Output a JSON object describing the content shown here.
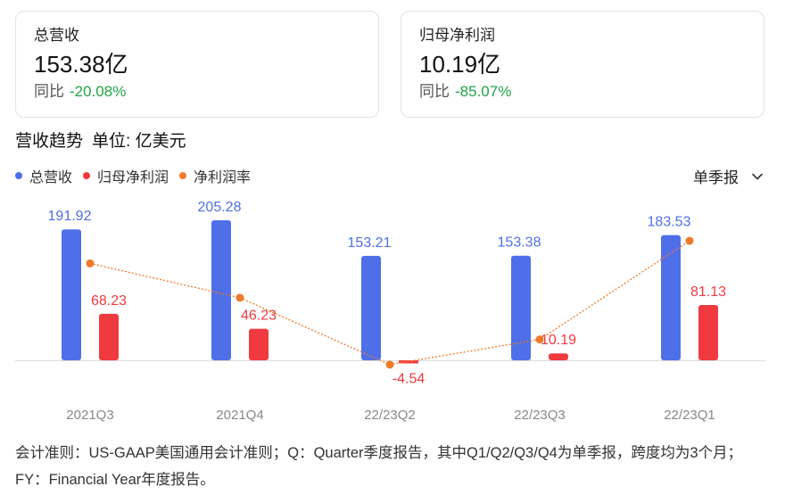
{
  "cards": [
    {
      "label": "总营收",
      "value": "153.38亿",
      "yoy_label": "同比",
      "yoy_value": "-20.08%"
    },
    {
      "label": "归母净利润",
      "value": "10.19亿",
      "yoy_label": "同比",
      "yoy_value": "-85.07%"
    }
  ],
  "trend": {
    "title": "营收趋势",
    "unit": "单位: 亿美元"
  },
  "legend": [
    {
      "label": "总营收",
      "color": "#4f6fe8"
    },
    {
      "label": "归母净利润",
      "color": "#f03a3f"
    },
    {
      "label": "净利润率",
      "color": "#f07a2a"
    }
  ],
  "period_select": {
    "label": "单季报",
    "icon": "chevron-down-icon"
  },
  "chart_data": {
    "type": "bar",
    "categories": [
      "2021Q3",
      "2021Q4",
      "22/23Q2",
      "22/23Q3",
      "22/23Q1"
    ],
    "series": [
      {
        "name": "总营收",
        "type": "bar",
        "color": "#4f6fe8",
        "values": [
          191.92,
          205.28,
          153.21,
          153.38,
          183.53
        ]
      },
      {
        "name": "归母净利润",
        "type": "bar",
        "color": "#f03a3f",
        "values": [
          68.23,
          46.23,
          -4.54,
          10.19,
          81.13
        ]
      },
      {
        "name": "净利润率",
        "type": "line",
        "color": "#f07a2a",
        "values": [
          35.6,
          22.5,
          -3.0,
          6.6,
          44.2
        ]
      }
    ],
    "ylim": [
      -5,
      210
    ],
    "grid": false,
    "legend_position": "top-left"
  },
  "footnote": "会计准则：US-GAAP美国通用会计准则；Q：Quarter季度报告，其中Q1/Q2/Q3/Q4为单季报，跨度均为3个月；FY：Financial Year年度报告。"
}
